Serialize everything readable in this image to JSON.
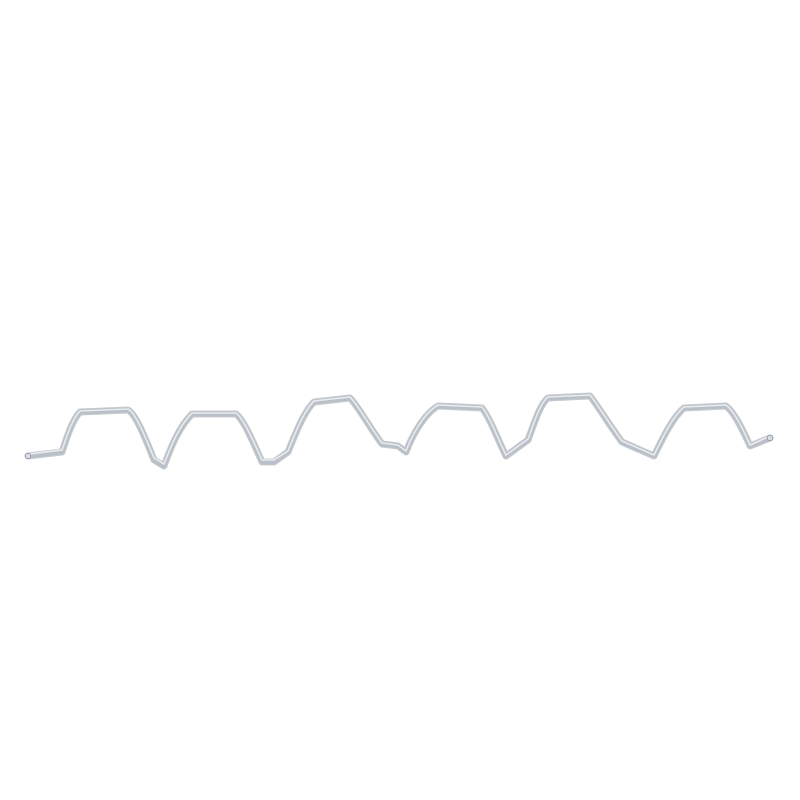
{
  "image": {
    "background_color": "#ffffff",
    "subject": "zigzag-wire",
    "wire_colors": {
      "highlight": "#eef1f4",
      "light": "#d7dce2",
      "mid": "#b9c0c8",
      "shadow": "#8e969f"
    }
  }
}
